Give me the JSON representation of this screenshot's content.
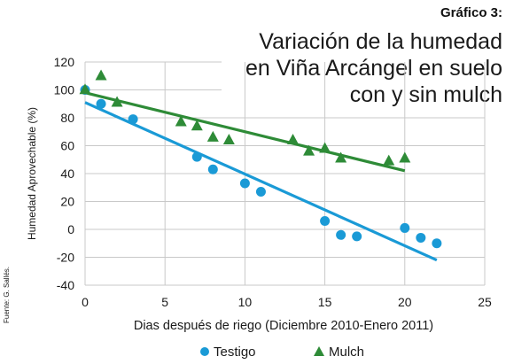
{
  "figure_label": "Gráfico 3:",
  "title_lines": [
    "Variación de la humedad",
    "en Viña Arcángel en suelo",
    "con y sin mulch"
  ],
  "source": "Fuente: G. Sallés.",
  "chart_data": {
    "type": "scatter",
    "xlabel": "Dias después de riego (Diciembre 2010-Enero 2011)",
    "ylabel": "Humedad Aprovechable (%)",
    "xlim": [
      0,
      25
    ],
    "ylim": [
      -40,
      120
    ],
    "xticks": [
      0,
      5,
      10,
      15,
      20,
      25
    ],
    "yticks": [
      -40,
      -20,
      0,
      20,
      40,
      60,
      80,
      100,
      120
    ],
    "grid": "horizontal",
    "legend_position": "bottom",
    "series": [
      {
        "name": "Testigo",
        "marker": "circle",
        "color": "#1a9ad6",
        "points": [
          {
            "x": 0,
            "y": 100
          },
          {
            "x": 1,
            "y": 90
          },
          {
            "x": 3,
            "y": 79
          },
          {
            "x": 7,
            "y": 52
          },
          {
            "x": 8,
            "y": 43
          },
          {
            "x": 10,
            "y": 33
          },
          {
            "x": 11,
            "y": 27
          },
          {
            "x": 15,
            "y": 6
          },
          {
            "x": 16,
            "y": -4
          },
          {
            "x": 17,
            "y": -5
          },
          {
            "x": 20,
            "y": 1
          },
          {
            "x": 21,
            "y": -6
          },
          {
            "x": 22,
            "y": -10
          }
        ],
        "trendline": {
          "x": [
            0,
            22
          ],
          "y": [
            91,
            -22
          ]
        }
      },
      {
        "name": "Mulch",
        "marker": "triangle",
        "color": "#2e8b37",
        "points": [
          {
            "x": 0,
            "y": 100
          },
          {
            "x": 1,
            "y": 110
          },
          {
            "x": 2,
            "y": 91
          },
          {
            "x": 6,
            "y": 77
          },
          {
            "x": 7,
            "y": 74
          },
          {
            "x": 8,
            "y": 66
          },
          {
            "x": 9,
            "y": 64
          },
          {
            "x": 13,
            "y": 64
          },
          {
            "x": 14,
            "y": 56
          },
          {
            "x": 15,
            "y": 58
          },
          {
            "x": 16,
            "y": 51
          },
          {
            "x": 19,
            "y": 49
          },
          {
            "x": 20,
            "y": 51
          }
        ],
        "trendline": {
          "x": [
            0,
            20
          ],
          "y": [
            98,
            42
          ]
        }
      }
    ]
  }
}
